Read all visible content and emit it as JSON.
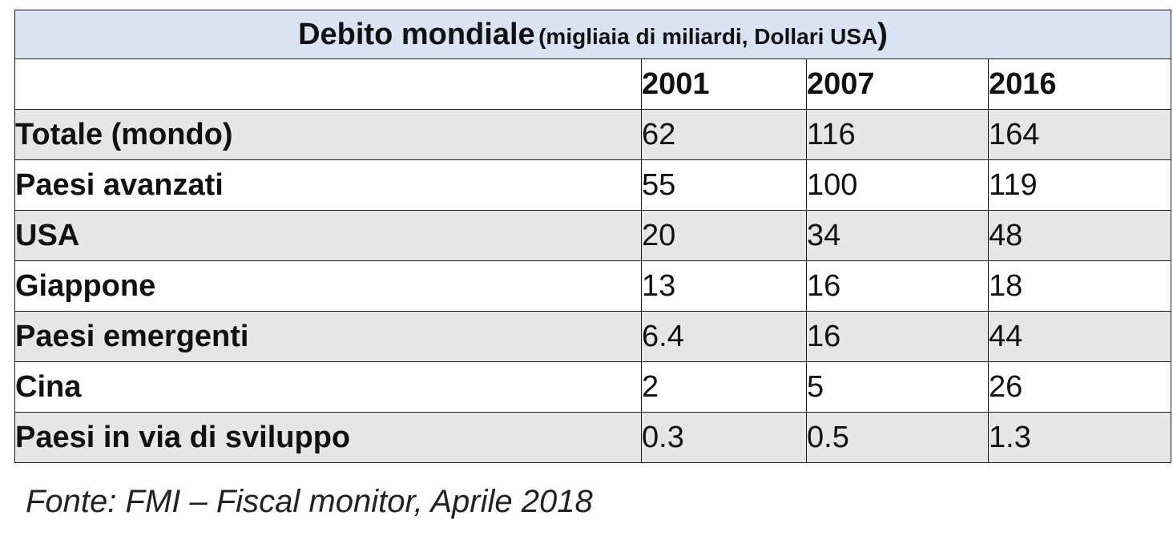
{
  "title": {
    "main": "Debito mondiale",
    "sub": "(migliaia di miliardi, Dollari USA",
    "close": ")"
  },
  "source": "Fonte: FMI – Fiscal monitor, Aprile 2018",
  "chart_data": {
    "type": "table",
    "title": "Debito mondiale (migliaia di miliardi, Dollari USA)",
    "columns": [
      "2001",
      "2007",
      "2016"
    ],
    "rows": [
      {
        "label": "Totale (mondo)",
        "values": [
          "62",
          "116",
          "164"
        ]
      },
      {
        "label": "Paesi avanzati",
        "values": [
          "55",
          "100",
          "119"
        ]
      },
      {
        "label": "USA",
        "values": [
          "20",
          "34",
          "48"
        ]
      },
      {
        "label": "Giappone",
        "values": [
          "13",
          "16",
          "18"
        ]
      },
      {
        "label": "Paesi emergenti",
        "values": [
          "6.4",
          "16",
          "44"
        ]
      },
      {
        "label": "Cina",
        "values": [
          "2",
          "5",
          "26"
        ]
      },
      {
        "label": "Paesi in via di sviluppo",
        "values": [
          "0.3",
          "0.5",
          "1.3"
        ]
      }
    ]
  }
}
